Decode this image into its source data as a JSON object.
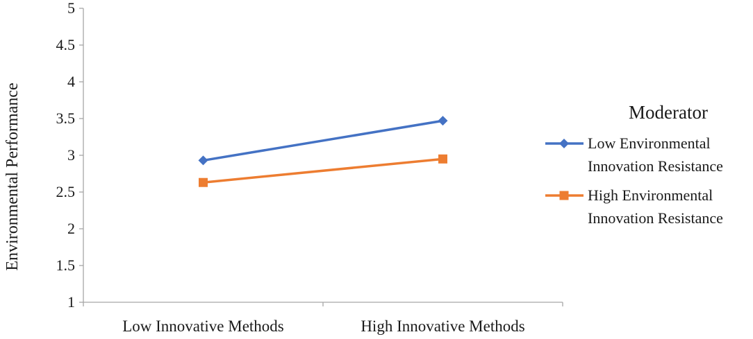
{
  "chart_data": {
    "type": "line",
    "title": "",
    "xlabel": "",
    "ylabel": "Environmental Performance",
    "categories": [
      "Low Innovative Methods",
      "High Innovative Methods"
    ],
    "ylim": [
      1,
      5
    ],
    "yticks": [
      1,
      1.5,
      2,
      2.5,
      3,
      3.5,
      4,
      4.5,
      5
    ],
    "ytick_labels": [
      "1",
      "1.5",
      "2",
      "2.5",
      "3",
      "3.5",
      "4",
      "4.5",
      "5"
    ],
    "grid": false,
    "legend": {
      "title": "Moderator",
      "placement": "right"
    },
    "series": [
      {
        "name_lines": [
          "Low Environmental",
          "Innovation Resistance"
        ],
        "values": [
          2.93,
          3.47
        ],
        "color": "#4472C4",
        "marker": "diamond"
      },
      {
        "name_lines": [
          "High Environmental",
          "Innovation Resistance"
        ],
        "values": [
          2.63,
          2.95
        ],
        "color": "#ED7D31",
        "marker": "square"
      }
    ]
  }
}
